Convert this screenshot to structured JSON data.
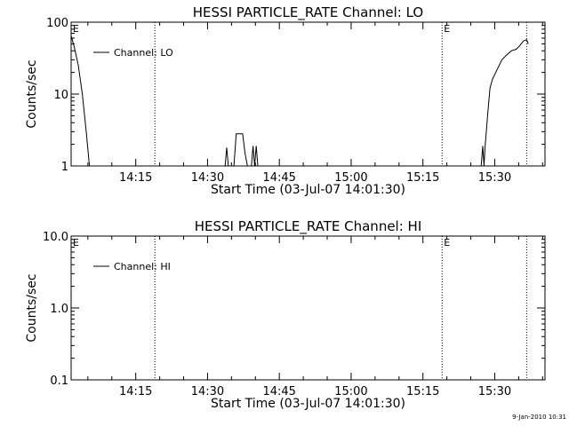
{
  "footer": {
    "timestamp": "9-Jan-2010 10:31"
  },
  "chart_data": [
    {
      "type": "line",
      "title": "HESSI PARTICLE_RATE Channel: LO",
      "xlabel": "Start Time (03-Jul-07 14:01:30)",
      "ylabel": "Counts/sec",
      "yscale": "log",
      "xlim": [
        "14:01:30",
        "15:40:30"
      ],
      "ylim": [
        1,
        100
      ],
      "x_ticks": [
        "14:15",
        "14:30",
        "14:45",
        "15:00",
        "15:15",
        "15:30"
      ],
      "y_ticks": [
        "1",
        "10",
        "100"
      ],
      "legend": {
        "position": "top-left",
        "entries": [
          "Channel: LO"
        ]
      },
      "grid": false,
      "markers": [
        {
          "label": "E",
          "x": "14:01:30"
        },
        {
          "label": "",
          "x": "14:19:00"
        },
        {
          "label": "E",
          "x": "15:19:00"
        },
        {
          "label": "",
          "x": "15:36:40"
        }
      ],
      "series": [
        {
          "name": "Channel: LO",
          "points": [
            [
              "14:01:30",
              65
            ],
            [
              "14:02:10",
              45
            ],
            [
              "14:03:00",
              25
            ],
            [
              "14:03:50",
              10
            ],
            [
              "14:04:40",
              3
            ],
            [
              "14:05:20",
              1
            ],
            [
              "14:33:40",
              1
            ],
            [
              "14:34:00",
              1.8
            ],
            [
              "14:34:20",
              1
            ],
            [
              "14:35:30",
              1
            ],
            [
              "14:36:00",
              2.8
            ],
            [
              "14:37:20",
              2.8
            ],
            [
              "14:37:50",
              1.5
            ],
            [
              "14:38:20",
              1
            ],
            [
              "14:39:10",
              1
            ],
            [
              "14:39:30",
              1.9
            ],
            [
              "14:39:50",
              1
            ],
            [
              "14:40:10",
              1.9
            ],
            [
              "14:40:30",
              1
            ],
            [
              "15:27:10",
              1
            ],
            [
              "15:27:30",
              1.9
            ],
            [
              "15:27:45",
              1
            ],
            [
              "15:28:00",
              1.9
            ],
            [
              "15:28:30",
              5
            ],
            [
              "15:29:00",
              12
            ],
            [
              "15:29:30",
              16
            ],
            [
              "15:30:30",
              22
            ],
            [
              "15:31:30",
              30
            ],
            [
              "15:32:30",
              35
            ],
            [
              "15:33:30",
              40
            ],
            [
              "15:34:30",
              42
            ],
            [
              "15:35:20",
              48
            ],
            [
              "15:36:00",
              55
            ],
            [
              "15:36:40",
              57
            ],
            [
              "15:37:00",
              50
            ]
          ]
        }
      ]
    },
    {
      "type": "line",
      "title": "HESSI PARTICLE_RATE Channel: HI",
      "xlabel": "Start Time (03-Jul-07 14:01:30)",
      "ylabel": "Counts/sec",
      "yscale": "log",
      "xlim": [
        "14:01:30",
        "15:40:30"
      ],
      "ylim": [
        0.1,
        10
      ],
      "x_ticks": [
        "14:15",
        "14:30",
        "14:45",
        "15:00",
        "15:15",
        "15:30"
      ],
      "y_ticks": [
        "0.1",
        "1.0",
        "10.0"
      ],
      "legend": {
        "position": "top-left",
        "entries": [
          "Channel: HI"
        ]
      },
      "grid": false,
      "markers": [
        {
          "label": "E",
          "x": "14:01:30"
        },
        {
          "label": "",
          "x": "14:19:00"
        },
        {
          "label": "E",
          "x": "15:19:00"
        },
        {
          "label": "",
          "x": "15:36:40"
        }
      ],
      "series": [
        {
          "name": "Channel: HI",
          "points": []
        }
      ]
    }
  ]
}
